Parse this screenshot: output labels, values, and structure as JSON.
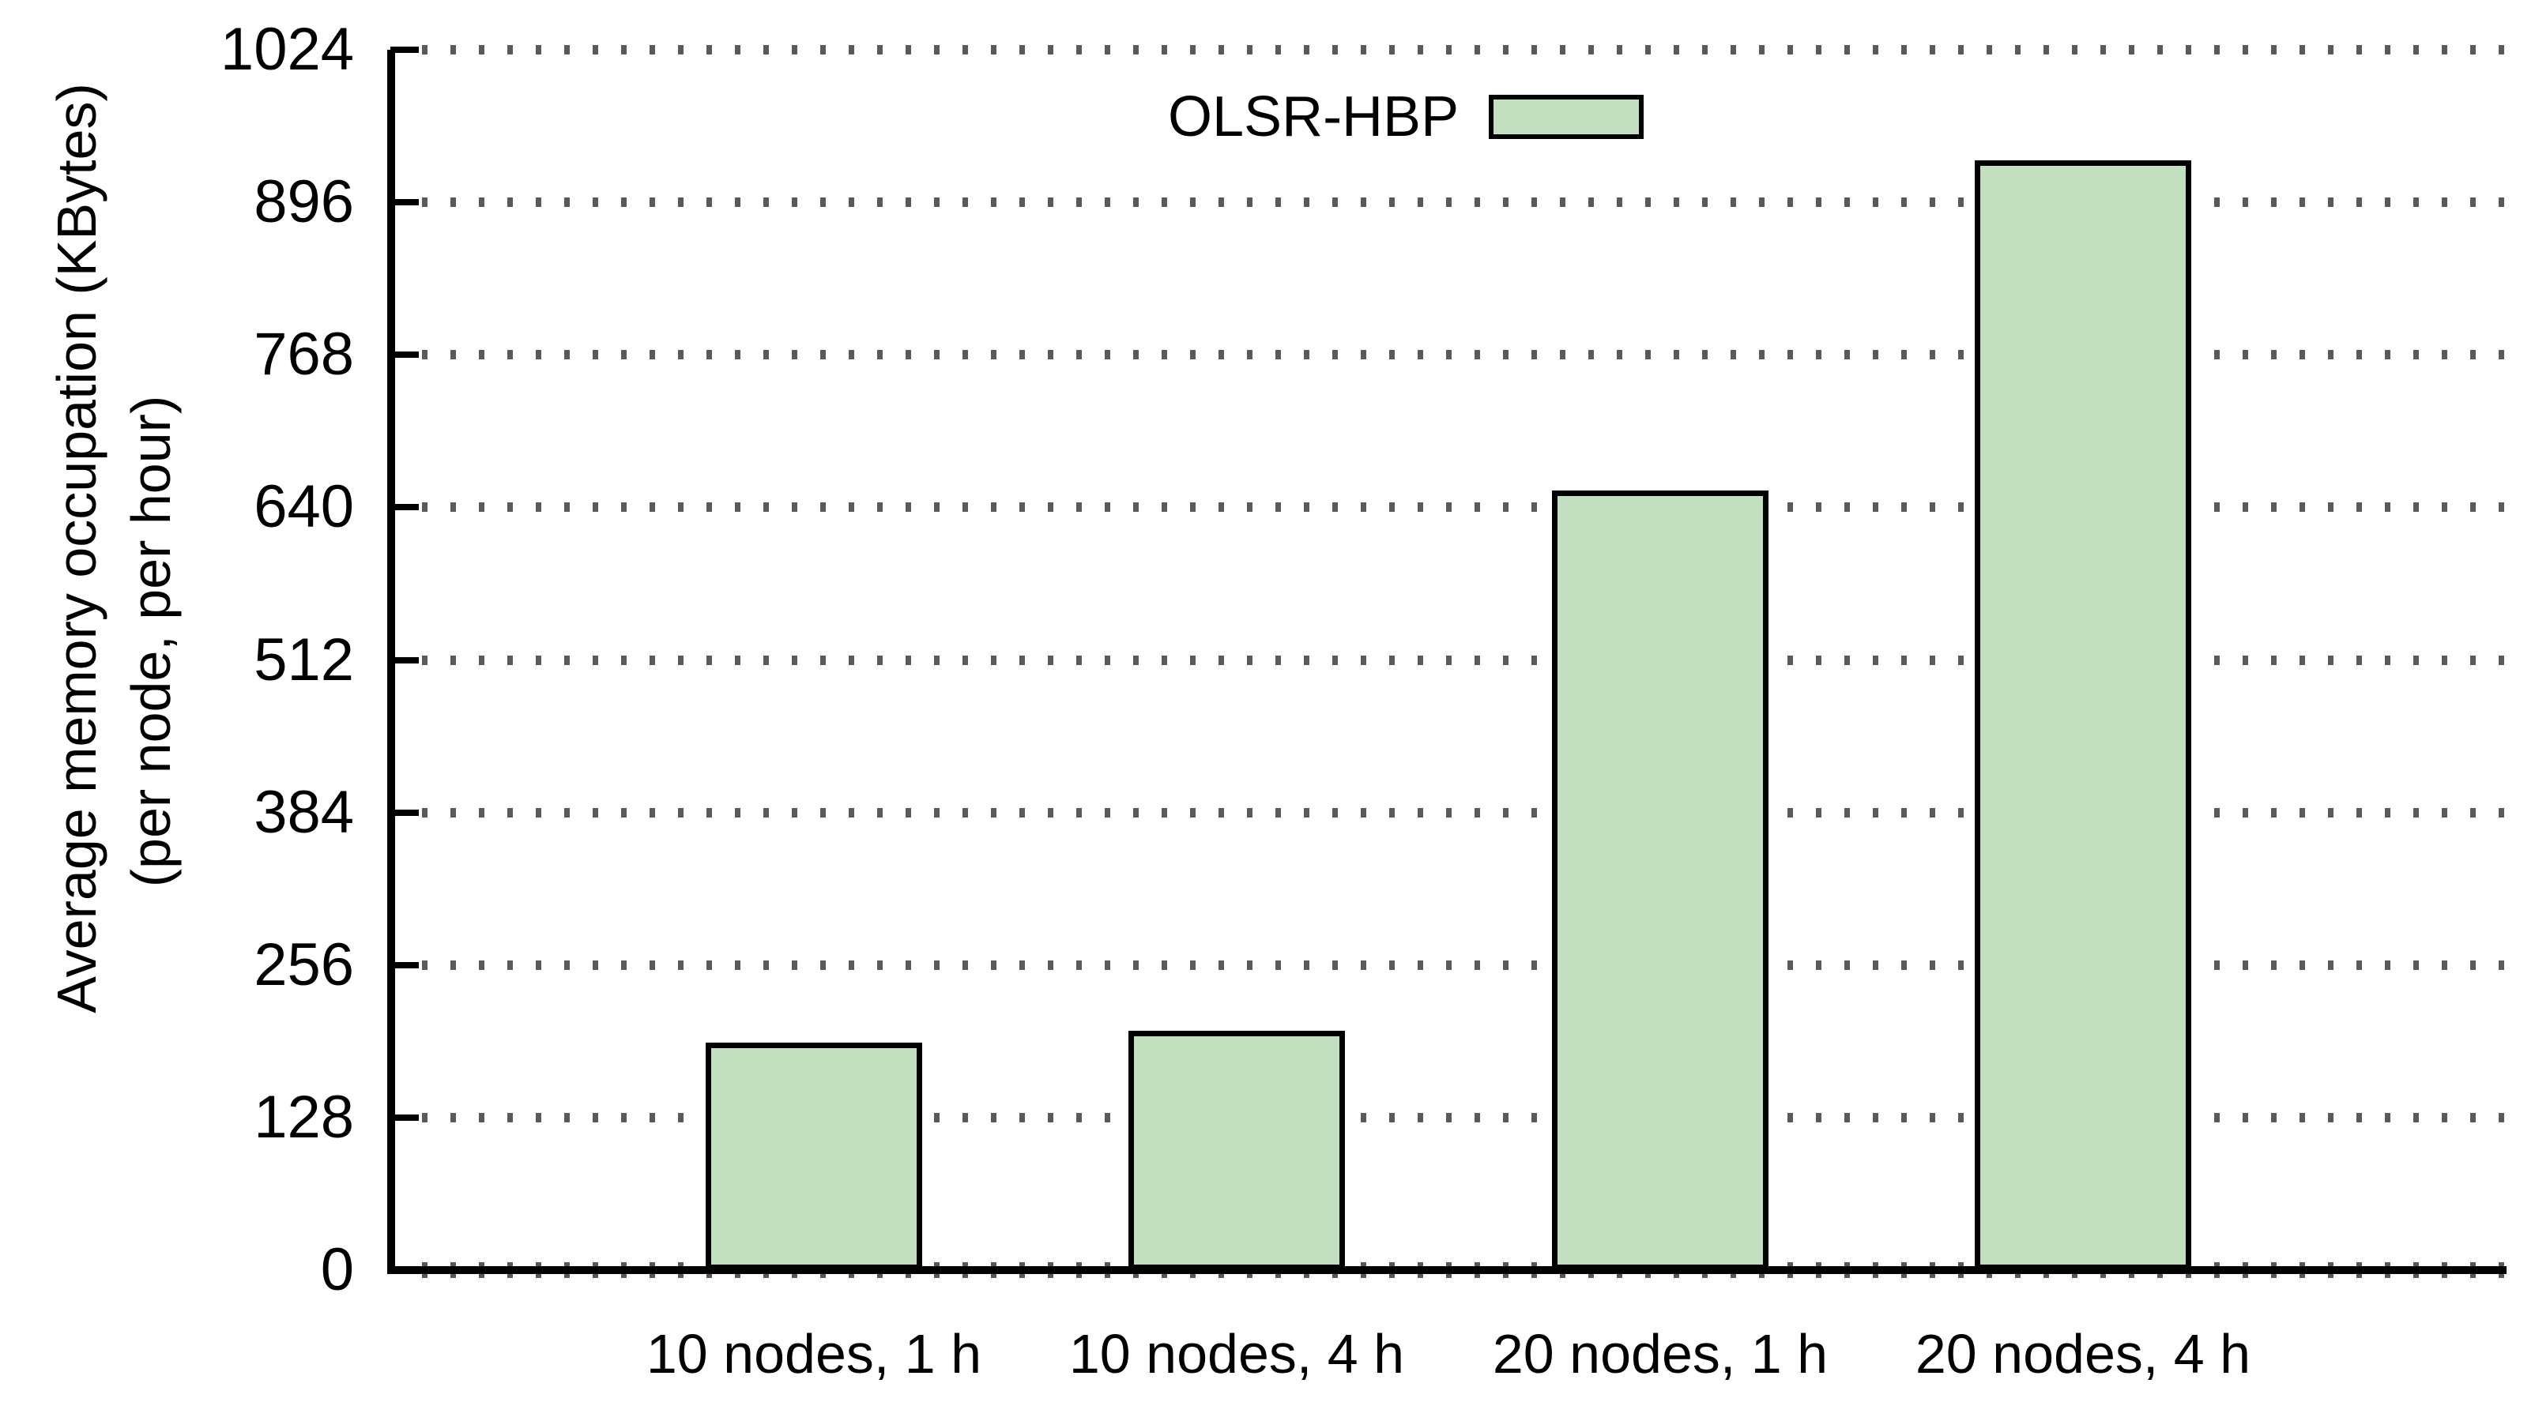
{
  "chart_data": {
    "type": "bar",
    "title": "",
    "ylabel_line1": "Average memory occupation (KBytes)",
    "ylabel_line2": "(per node, per hour)",
    "xlabel": "",
    "categories": [
      "10 nodes, 1 h",
      "10 nodes, 4 h",
      "20 nodes, 1 h",
      "20 nodes, 4 h"
    ],
    "series": [
      {
        "name": "OLSR-HBP",
        "values": [
          191,
          201,
          654,
          931
        ]
      }
    ],
    "yticks": [
      0,
      128,
      256,
      384,
      512,
      640,
      768,
      896,
      1024
    ],
    "ylim": [
      0,
      1024
    ],
    "grid": "horizontal-dotted",
    "legend_position": "top-center",
    "legend": {
      "label": "OLSR-HBP"
    },
    "colors": {
      "bar_fill": "#c2e0c0",
      "bar_border": "#000000",
      "axis": "#000000",
      "grid": "#5a5a5a",
      "background": "#ffffff"
    }
  }
}
